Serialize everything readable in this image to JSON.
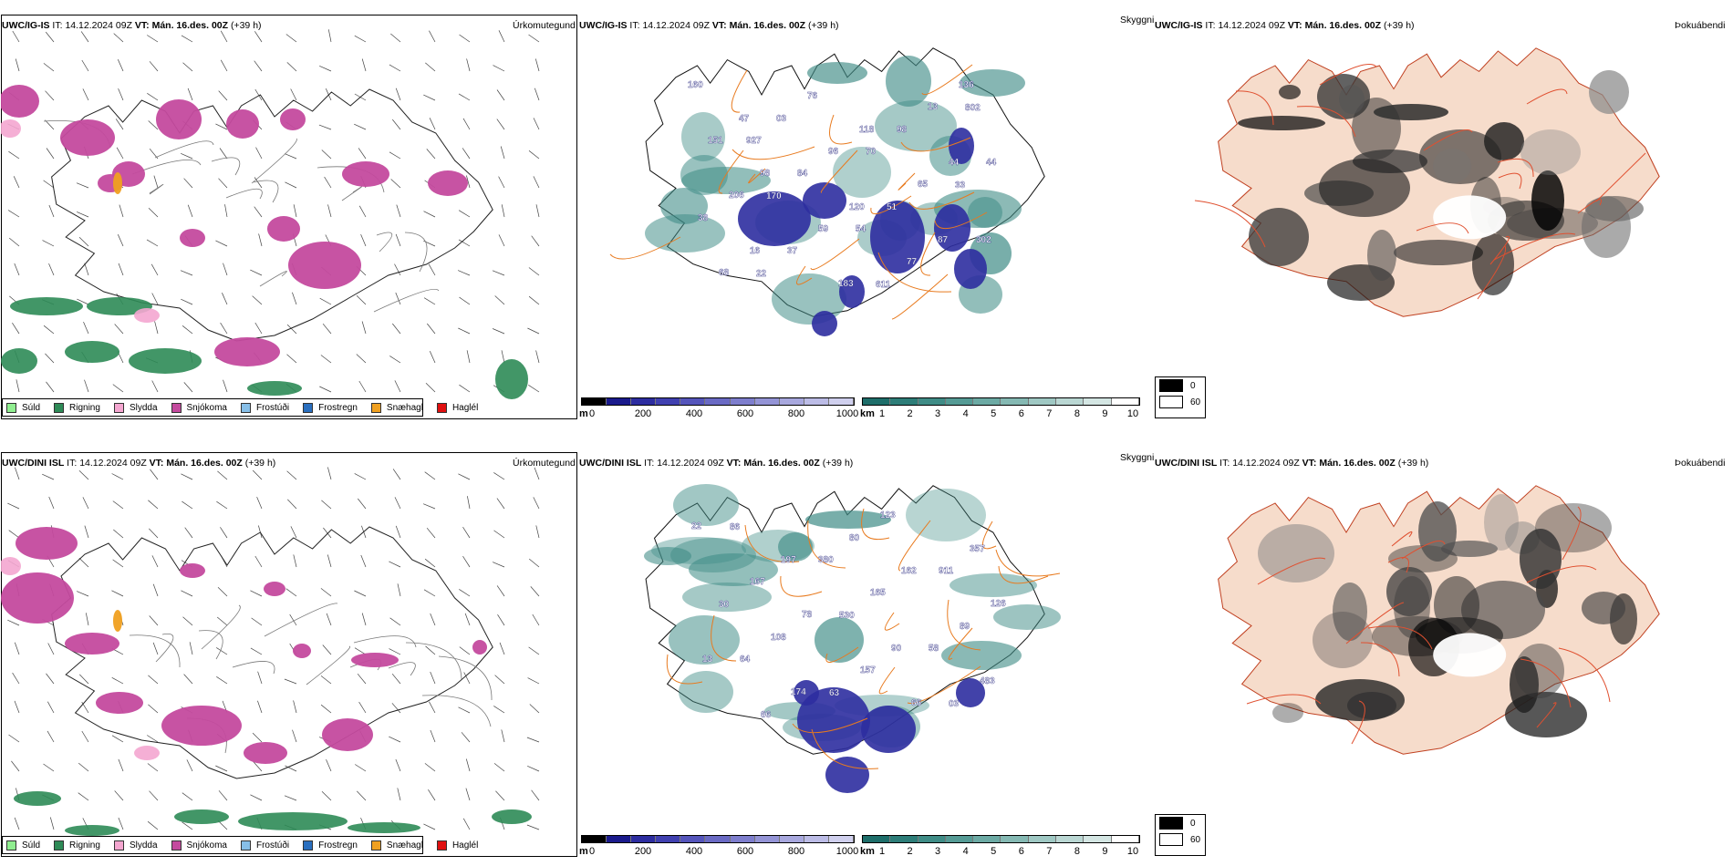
{
  "rows": [
    {
      "id": "ig",
      "panels": {
        "precip": {
          "model": "UWC/IG-IS",
          "it_label": "IT:",
          "it_value": "14.12.2024 09Z",
          "vt_label": "VT:",
          "vt_value": "Mán. 16.des. 00Z",
          "lead": "(+39 h)",
          "product": "Úrkomutegund"
        },
        "cloud": {
          "model": "UWC/IG-IS",
          "it_label": "IT:",
          "it_value": "14.12.2024 09Z",
          "vt_label": "VT:",
          "vt_value": "Mán. 16.des. 00Z",
          "lead": "(+39 h)",
          "product": "Skyggni"
        },
        "fog": {
          "model": "UWC/IG-IS",
          "it_label": "IT:",
          "it_value": "14.12.2024 09Z",
          "vt_label": "VT:",
          "vt_value": "Mán. 16.des. 00Z",
          "lead": "(+39 h)",
          "product": "Þokuábendi"
        }
      },
      "map_numbers": [
        "927",
        "33",
        "54",
        "22",
        "802",
        "70",
        "170",
        "302",
        "611",
        "03",
        "44",
        "51",
        "37",
        "160",
        "98",
        "84",
        "38",
        "77",
        "76",
        "151",
        "65",
        "59",
        "68",
        "13",
        "96",
        "206",
        "87",
        "183",
        "47",
        "44",
        "120",
        "16",
        "136",
        "118",
        "98"
      ]
    },
    {
      "id": "dini",
      "panels": {
        "precip": {
          "model": "UWC/DINI ISL",
          "it_label": "IT:",
          "it_value": "14.12.2024 09Z",
          "vt_label": "VT:",
          "vt_value": "Mán. 16.des. 00Z",
          "lead": "(+39 h)",
          "product": "Úrkomutegund"
        },
        "cloud": {
          "model": "UWC/DINI ISL",
          "it_label": "IT:",
          "it_value": "14.12.2024 09Z",
          "vt_label": "VT:",
          "vt_value": "Mán. 16.des. 00Z",
          "lead": "(+39 h)",
          "product": "Skyggni"
        },
        "fog": {
          "model": "UWC/DINI ISL",
          "it_label": "IT:",
          "it_value": "14.12.2024 09Z",
          "vt_label": "VT:",
          "vt_value": "Mán. 16.des. 00Z",
          "lead": "(+39 h)",
          "product": "Þokuábendi"
        }
      },
      "map_numbers": [
        "380",
        "30",
        "58",
        "63",
        "86",
        "911",
        "530",
        "64",
        "03",
        "80",
        "167",
        "89",
        "157",
        "66",
        "357",
        "165",
        "108",
        "483",
        "123",
        "197",
        "126",
        "90",
        "174",
        "22",
        "162",
        "78",
        "13",
        "66"
      ]
    }
  ],
  "precip_legend": [
    {
      "label": "Súld",
      "color": "#90ee90"
    },
    {
      "label": "Rigning",
      "color": "#2e8b57"
    },
    {
      "label": "Slydda",
      "color": "#f4a6d0"
    },
    {
      "label": "Snjókoma",
      "color": "#c44a9e"
    },
    {
      "label": "Frostúði",
      "color": "#87bfe8"
    },
    {
      "label": "Frostregn",
      "color": "#2a6fbf"
    },
    {
      "label": "Snæhagl",
      "color": "#f0a020"
    },
    {
      "label": "Haglél",
      "color": "#e01010"
    }
  ],
  "cloudbase_bar": {
    "unit": "m",
    "ticks": [
      "0",
      "200",
      "400",
      "600",
      "800",
      "1000"
    ],
    "colors": [
      "#000000",
      "#1a1a8c",
      "#2d2da0",
      "#4040b0",
      "#5555bb",
      "#6a6ac4",
      "#7e7ecd",
      "#9494d6",
      "#a8a8de",
      "#bcbce6",
      "#d0d0ee"
    ]
  },
  "visibility_bar": {
    "unit": "km",
    "ticks": [
      "1",
      "2",
      "3",
      "4",
      "5",
      "6",
      "7",
      "8",
      "9",
      "10"
    ],
    "colors": [
      "#1e6e6a",
      "#2d7d78",
      "#3f8c86",
      "#559b95",
      "#6caaa4",
      "#85b9b3",
      "#9fc8c3",
      "#bad7d3",
      "#d4e6e3",
      "#ffffff"
    ]
  },
  "fog_legend": [
    {
      "label": "0",
      "color": "#000000"
    },
    {
      "label": "60",
      "color": "#ffffff"
    }
  ]
}
